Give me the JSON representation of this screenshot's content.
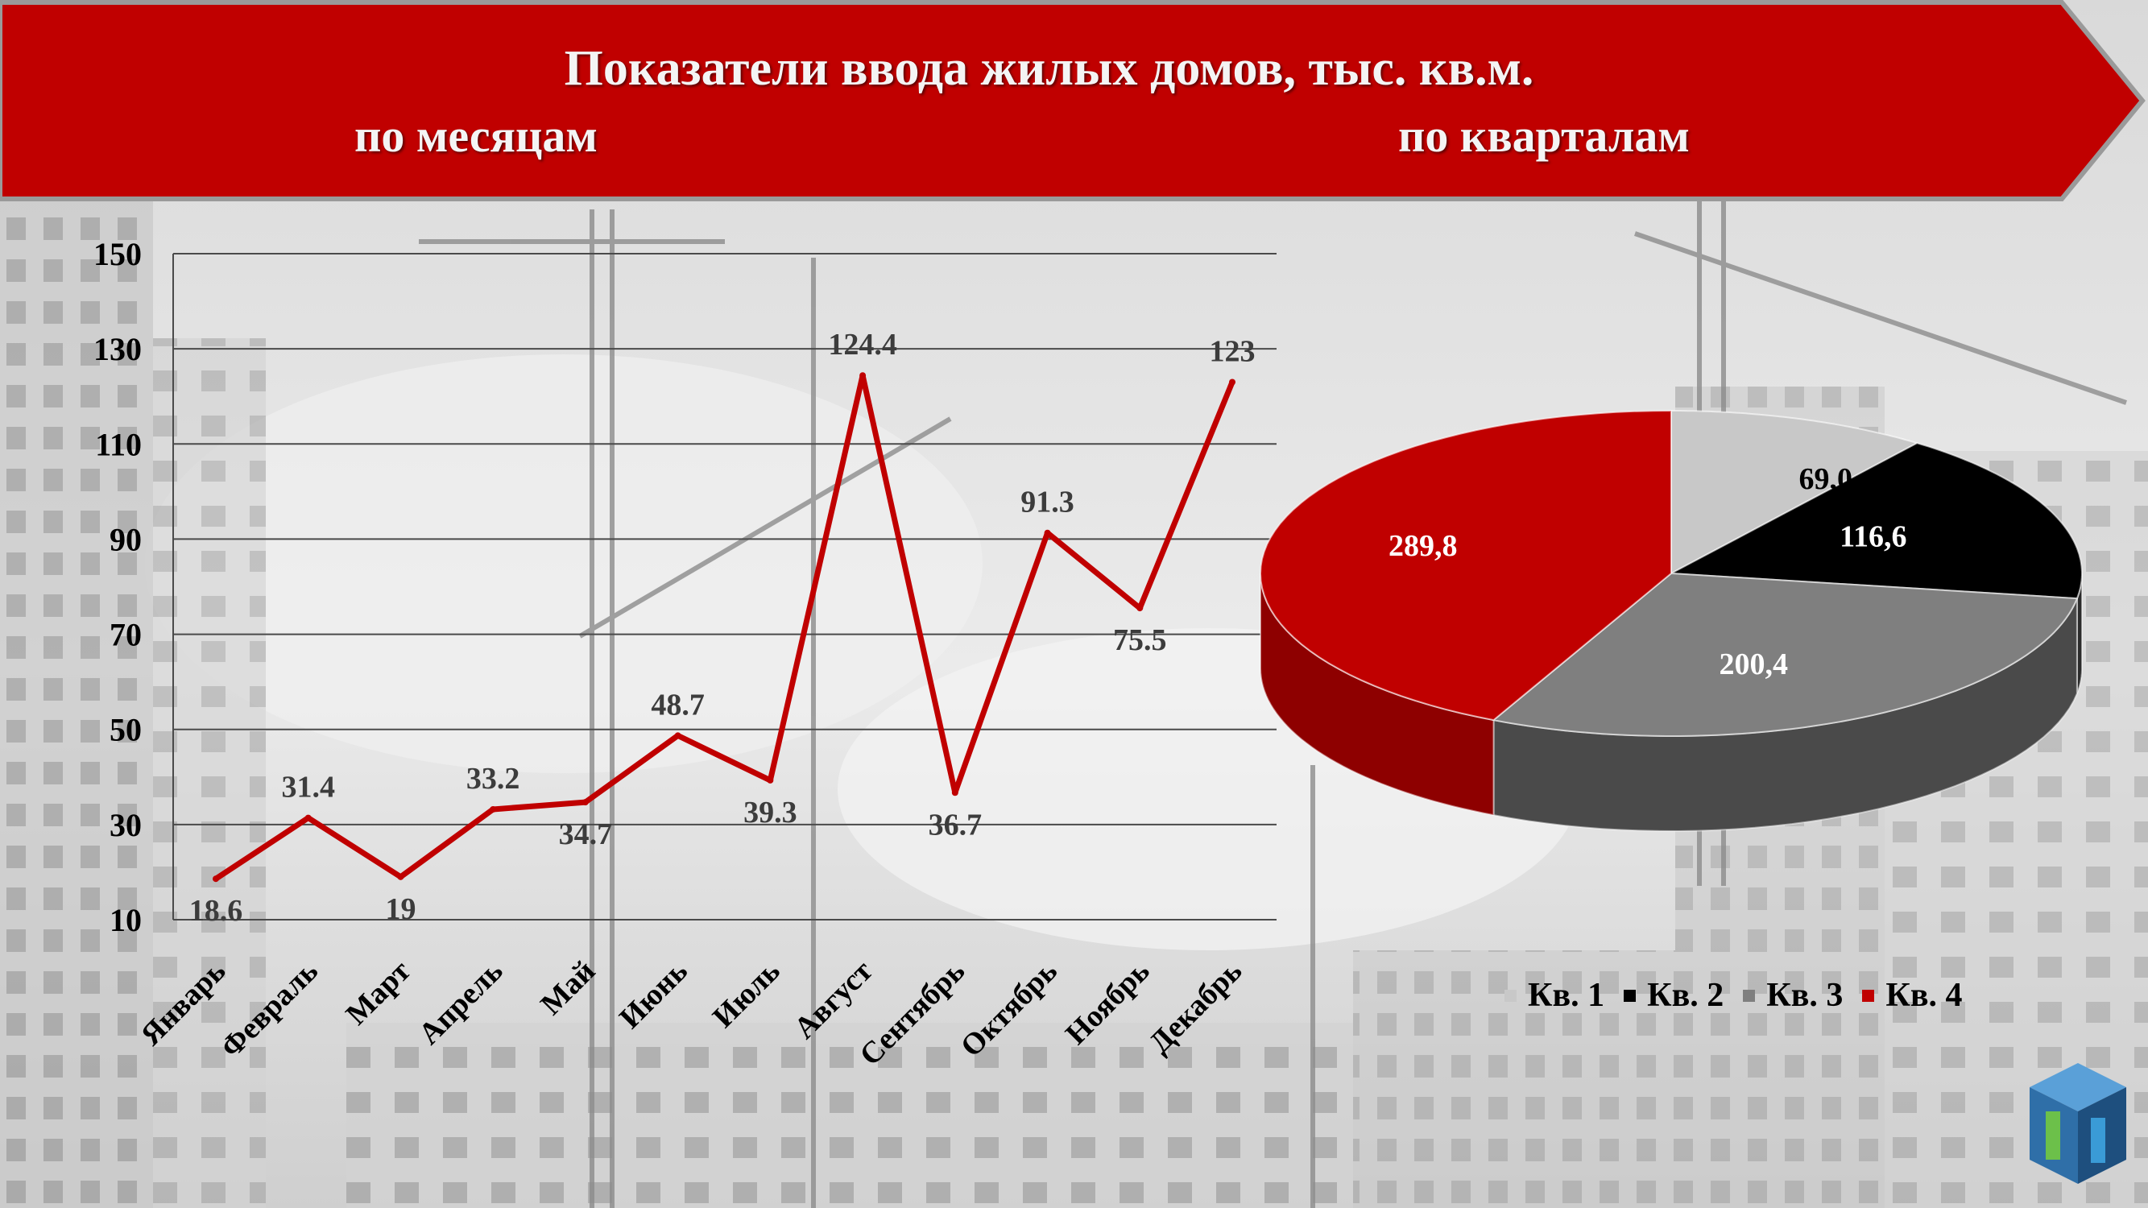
{
  "header": {
    "title": "Показатели ввода жилых домов, тыс. кв.м.",
    "left_subtitle": "по месяцам",
    "right_subtitle": "по кварталам"
  },
  "colors": {
    "banner": "#c00000",
    "line": "#c00000",
    "q1": "#c8c8c8",
    "q2": "#000000",
    "q3": "#7f7f7f",
    "q4": "#c00000"
  },
  "chart_data": [
    {
      "type": "line",
      "categories": [
        "Январь",
        "Февраль",
        "Март",
        "Апрель",
        "Май",
        "Июнь",
        "Июль",
        "Август",
        "Сентябрь",
        "Октябрь",
        "Ноябрь",
        "Декабрь"
      ],
      "values": [
        18.6,
        31.4,
        19,
        33.2,
        34.7,
        48.7,
        39.3,
        124.4,
        36.7,
        91.3,
        75.5,
        123
      ],
      "value_labels": [
        "18.6",
        "31.4",
        "19",
        "33.2",
        "34.7",
        "48.7",
        "39.3",
        "124.4",
        "36.7",
        "91.3",
        "75.5",
        "123"
      ],
      "ylim": [
        10,
        150
      ],
      "yticks": [
        10,
        30,
        50,
        70,
        90,
        110,
        130,
        150
      ],
      "grid": true,
      "legend": "none"
    },
    {
      "type": "pie",
      "style": "3d",
      "labels": [
        "Кв. 1",
        "Кв. 2",
        "Кв. 3",
        "Кв. 4"
      ],
      "values": [
        69.0,
        116.6,
        200.4,
        289.8
      ],
      "value_labels": [
        "69,0",
        "116,6",
        "200,4",
        "289,8"
      ],
      "legend": "bottom"
    }
  ]
}
